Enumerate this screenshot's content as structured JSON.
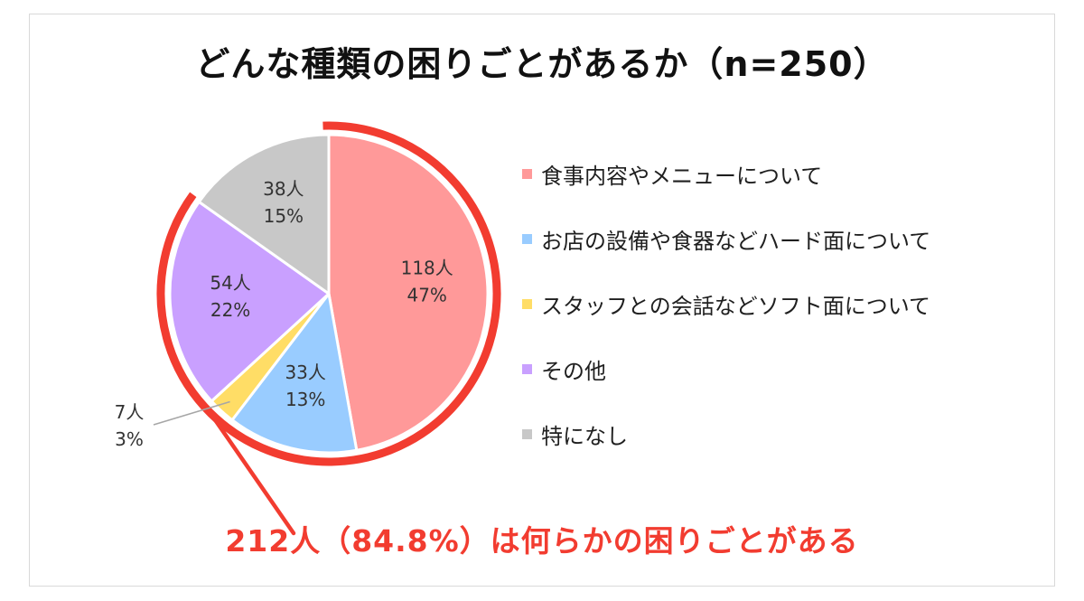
{
  "title": "どんな種類の困りごとがあるか（n=250）",
  "callout": "212人（84.8%）は何らかの困りごとがある",
  "colors": {
    "highlight": "#f23c30",
    "leader": "#a6a6a6"
  },
  "chart_data": {
    "type": "pie",
    "title": "どんな種類の困りごとがあるか（n=250）",
    "n": 250,
    "categories": [
      "食事内容やメニューについて",
      "お店の設備や食器などハード面について",
      "スタッフとの会話などソフト面について",
      "その他",
      "特になし"
    ],
    "values": [
      118,
      33,
      7,
      54,
      38
    ],
    "percent": [
      47,
      13,
      3,
      22,
      15
    ],
    "colors": [
      "#ff9999",
      "#99ccff",
      "#ffdd66",
      "#c9a0ff",
      "#c8c8c8"
    ],
    "data_labels": [
      {
        "count": "118人",
        "pct": "47%"
      },
      {
        "count": "33人",
        "pct": "13%"
      },
      {
        "count": "7人",
        "pct": "3%"
      },
      {
        "count": "54人",
        "pct": "22%"
      },
      {
        "count": "38人",
        "pct": "15%"
      }
    ],
    "legend_position": "right",
    "highlighted_slices": [
      0,
      1,
      2,
      3
    ],
    "highlight_total": {
      "count": 212,
      "percent": 84.8
    }
  }
}
